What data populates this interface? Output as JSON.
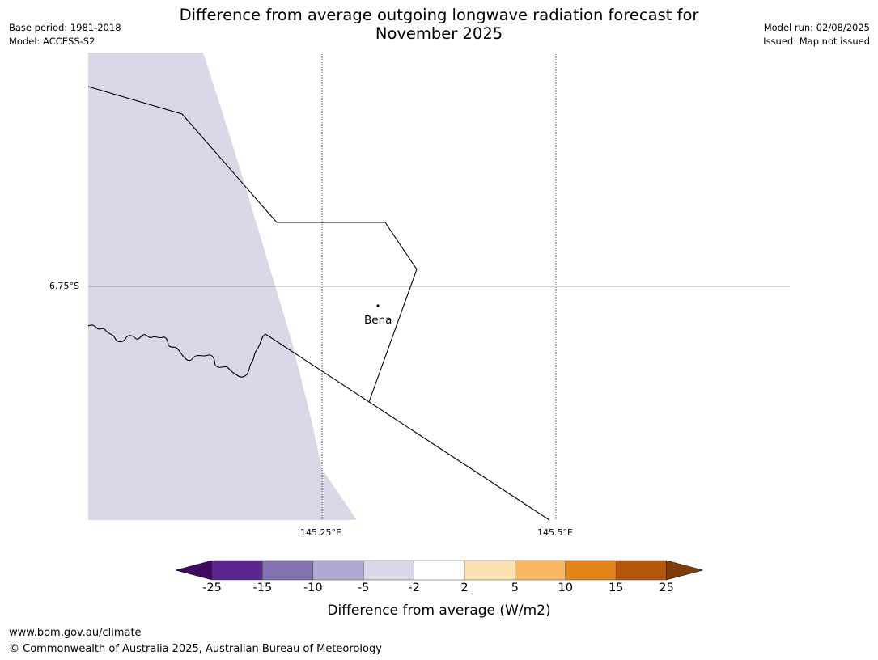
{
  "title": {
    "line1": "Difference from average outgoing longwave radiation forecast for",
    "line2": "November 2025"
  },
  "meta_left": {
    "base_period": "Base period: 1981-2018",
    "model": "Model: ACCESS-S2"
  },
  "meta_right": {
    "model_run": "Model run: 02/08/2025",
    "issued": "Issued: Map not issued"
  },
  "map": {
    "lat_label": "6.75°S",
    "lon_labels": [
      "145.25°E",
      "145.5°E"
    ],
    "place": "Bena",
    "colors": {
      "anomaly_fill": "#d8d8e9",
      "gridline": "#000000",
      "boundary": "#000000"
    }
  },
  "colorbar": {
    "labels": [
      "-25",
      "-15",
      "-10",
      "-5",
      "-2",
      "2",
      "5",
      "10",
      "15",
      "25"
    ],
    "colors": [
      "#3f0a5e",
      "#5b2690",
      "#8272b0",
      "#b1a9d1",
      "#d8d8e9",
      "#ffffff",
      "#fddfb4",
      "#fbb862",
      "#e2851b",
      "#b4570a",
      "#7f3d0b"
    ],
    "title": "Difference from average (W/m2)"
  },
  "footer": {
    "url": "www.bom.gov.au/climate",
    "copyright": "© Commonwealth of Australia 2025, Australian Bureau of Meteorology"
  }
}
